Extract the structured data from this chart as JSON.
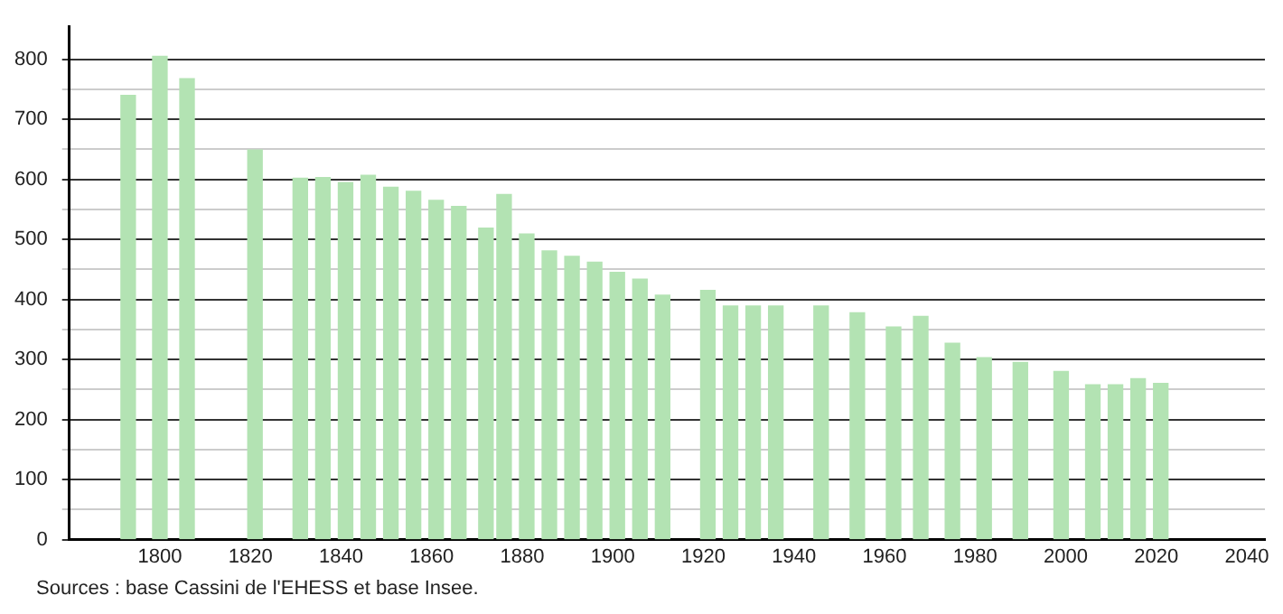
{
  "chart_data": {
    "type": "bar",
    "x": [
      1793,
      1800,
      1806,
      1821,
      1831,
      1836,
      1841,
      1846,
      1851,
      1856,
      1861,
      1866,
      1872,
      1876,
      1881,
      1886,
      1891,
      1896,
      1901,
      1906,
      1911,
      1921,
      1926,
      1931,
      1936,
      1946,
      1954,
      1962,
      1968,
      1975,
      1982,
      1990,
      1999,
      2006,
      2011,
      2016,
      2021
    ],
    "values": [
      740,
      805,
      768,
      649,
      602,
      603,
      595,
      607,
      587,
      580,
      565,
      555,
      519,
      575,
      509,
      481,
      472,
      462,
      445,
      434,
      407,
      415,
      389,
      389,
      389,
      389,
      378,
      354,
      372,
      327,
      303,
      295,
      280,
      258,
      258,
      268,
      260
    ],
    "color": "#b3e3b3",
    "xlim": [
      1780,
      2044
    ],
    "xticks": [
      1800,
      1820,
      1840,
      1860,
      1880,
      1900,
      1920,
      1940,
      1960,
      1980,
      2000,
      2020,
      2040
    ],
    "ylim": [
      0,
      855
    ],
    "yticks": [
      0,
      {
        "value": 50,
        "label": null
      },
      100,
      {
        "value": 150,
        "label": null
      },
      200,
      {
        "value": 250,
        "label": null
      },
      300,
      {
        "value": 350,
        "label": null
      },
      400,
      {
        "value": 450,
        "label": null
      },
      500,
      {
        "value": 550,
        "label": null
      },
      600,
      {
        "value": 650,
        "label": null
      },
      700,
      {
        "value": 750,
        "label": null
      },
      800
    ],
    "grid": "y",
    "legend": false,
    "annotations": [
      "Sources : base Cassini de l'EHESS et base Insee."
    ]
  }
}
